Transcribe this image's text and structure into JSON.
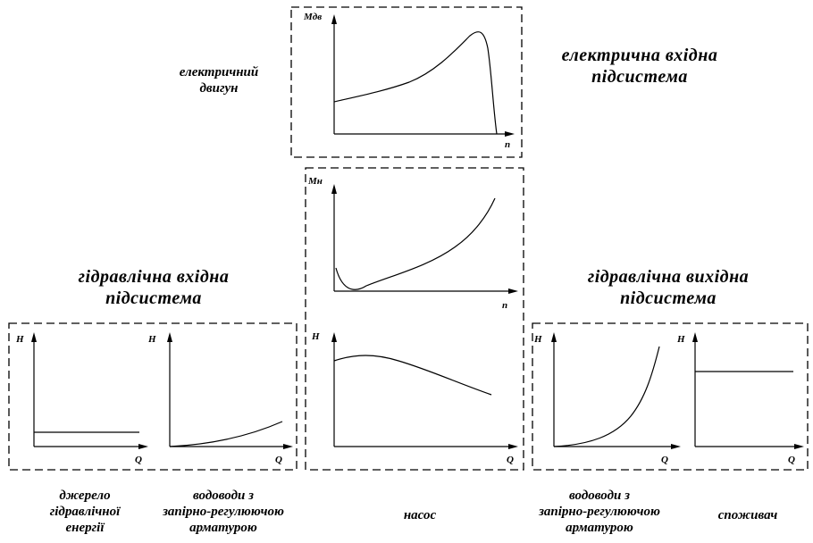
{
  "subsystems": {
    "electric_input": [
      "електрична вхідна",
      "підсистема"
    ],
    "hydraulic_input": [
      "гідравлічна вхідна",
      "підсистема"
    ],
    "hydraulic_output": [
      "гідравлічна вихідна",
      "підсистема"
    ]
  },
  "components": {
    "motor": [
      "електричний",
      "двигун"
    ],
    "energy_source": [
      "джерело",
      "гідравлічної",
      "енергії"
    ],
    "input_pipelines": [
      "водоводи з",
      "запірно-регулюючою",
      "арматурою"
    ],
    "pump": [
      "насос"
    ],
    "output_pipelines": [
      "водоводи з",
      "запірно-регулюючою",
      "арматурою"
    ],
    "consumer": [
      "споживач"
    ]
  },
  "axes": {
    "motor": {
      "y": "Мдв",
      "x": "n"
    },
    "pump_torque": {
      "y": "Мн",
      "x": "n"
    },
    "pump_head": {
      "y": "H",
      "x": "Q"
    },
    "energy_source": {
      "y": "H",
      "x": "Q"
    },
    "input_pipelines": {
      "y": "H",
      "x": "Q"
    },
    "output_pipelines": {
      "y": "H",
      "x": "Q"
    },
    "consumer": {
      "y": "H",
      "x": "Q"
    }
  }
}
